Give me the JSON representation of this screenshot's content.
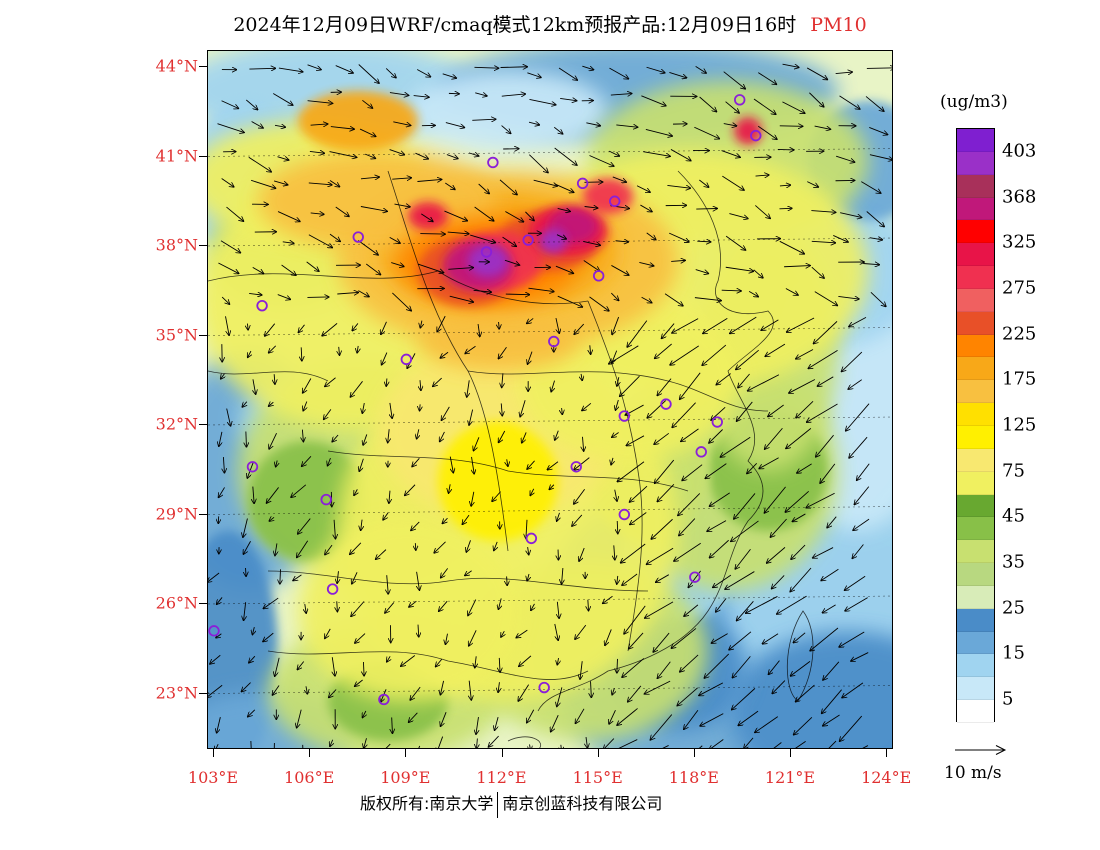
{
  "title": {
    "text": "2024年12月09日WRF/cmaq模式12km预报产品:12月09日16时",
    "variable": "PM10",
    "variable_color": "#e03030"
  },
  "map": {
    "lat_labels": [
      "44°N",
      "41°N",
      "38°N",
      "35°N",
      "32°N",
      "29°N",
      "26°N",
      "23°N"
    ],
    "lon_labels": [
      "103°E",
      "106°E",
      "109°E",
      "112°E",
      "115°E",
      "118°E",
      "121°E",
      "124°E"
    ],
    "label_color": "#e03030"
  },
  "legend": {
    "unit": "(ug/m3)",
    "colors": [
      "#7f1fd0",
      "#9a30c8",
      "#a8305a",
      "#c0187a",
      "#ff0000",
      "#e81448",
      "#f03050",
      "#f06060",
      "#e85028",
      "#ff8400",
      "#f8a818",
      "#f8c040",
      "#ffe000",
      "#fff000",
      "#f8e870",
      "#f0f060",
      "#68a830",
      "#88c048",
      "#c8e070",
      "#b8d880",
      "#d8ecb8",
      "#4a8cc8",
      "#6aa8d8",
      "#a0d4f0",
      "#c8e8f8",
      "#ffffff"
    ],
    "labels": [
      "403",
      "368",
      "325",
      "275",
      "225",
      "175",
      "125",
      "75",
      "45",
      "35",
      "25",
      "15",
      "5"
    ]
  },
  "reference_vector": {
    "label": "10 m/s"
  },
  "footer": {
    "left": "版权所有:南京大学",
    "right": "南京创蓝科技有限公司"
  },
  "stations": [
    {
      "lon": 119.4,
      "lat": 42.9
    },
    {
      "lon": 119.9,
      "lat": 41.7
    },
    {
      "lon": 111.7,
      "lat": 40.8
    },
    {
      "lon": 114.5,
      "lat": 40.1
    },
    {
      "lon": 115.5,
      "lat": 39.5
    },
    {
      "lon": 107.5,
      "lat": 38.3
    },
    {
      "lon": 111.5,
      "lat": 37.8
    },
    {
      "lon": 112.8,
      "lat": 38.2
    },
    {
      "lon": 115.0,
      "lat": 37.0
    },
    {
      "lon": 104.5,
      "lat": 36.0
    },
    {
      "lon": 109.0,
      "lat": 34.2
    },
    {
      "lon": 113.6,
      "lat": 34.8
    },
    {
      "lon": 117.1,
      "lat": 32.7
    },
    {
      "lon": 115.8,
      "lat": 32.3
    },
    {
      "lon": 118.7,
      "lat": 32.1
    },
    {
      "lon": 118.2,
      "lat": 31.1
    },
    {
      "lon": 104.2,
      "lat": 30.6
    },
    {
      "lon": 114.3,
      "lat": 30.6
    },
    {
      "lon": 106.5,
      "lat": 29.5
    },
    {
      "lon": 115.8,
      "lat": 29.0
    },
    {
      "lon": 112.9,
      "lat": 28.2
    },
    {
      "lon": 106.7,
      "lat": 26.5
    },
    {
      "lon": 118.0,
      "lat": 26.9
    },
    {
      "lon": 103.0,
      "lat": 25.1
    },
    {
      "lon": 113.3,
      "lat": 23.2
    },
    {
      "lon": 108.3,
      "lat": 22.8
    }
  ]
}
